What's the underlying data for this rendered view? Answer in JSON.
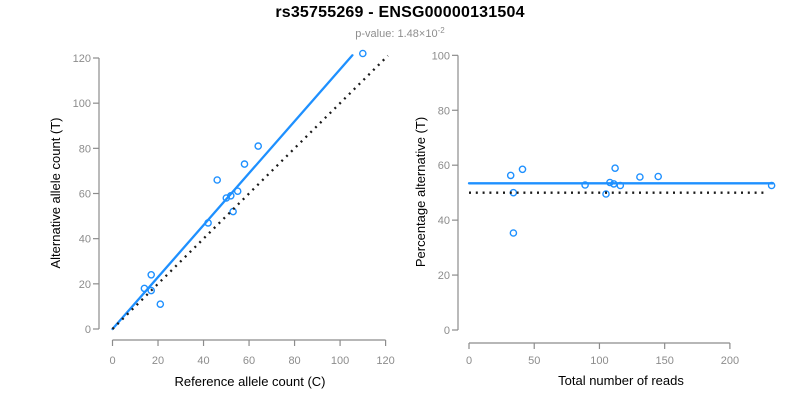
{
  "header": {
    "title": "rs35755269 - ENSG00000131504",
    "p_label": "p-value: ",
    "p_mantissa": "1.48",
    "p_times": "×10",
    "p_exponent": "-2"
  },
  "colors": {
    "accent": "#1E90FF",
    "black_line": "#1a1a1a",
    "axis": "#8c8c8c",
    "tick_label": "#8c8c8c",
    "axis_title": "#000000",
    "background": "#ffffff"
  },
  "chart_data": [
    {
      "name": "allele-counts-scatter",
      "type": "scatter",
      "title": "",
      "xlabel": "Reference allele count (C)",
      "ylabel": "Alternative allele count (T)",
      "xlim": [
        0,
        120
      ],
      "ylim": [
        0,
        122
      ],
      "xticks": [
        0,
        20,
        40,
        60,
        80,
        100,
        120
      ],
      "yticks": [
        0,
        20,
        40,
        60,
        80,
        100,
        120
      ],
      "grid": false,
      "legend": null,
      "points": [
        [
          14,
          18
        ],
        [
          17,
          24
        ],
        [
          17,
          17
        ],
        [
          21,
          11
        ],
        [
          42,
          47
        ],
        [
          50,
          58
        ],
        [
          52,
          59
        ],
        [
          53,
          52
        ],
        [
          55,
          61
        ],
        [
          46,
          66
        ],
        [
          58,
          73
        ],
        [
          64,
          81
        ],
        [
          110,
          122
        ]
      ],
      "lines": [
        {
          "name": "regression-line",
          "x": [
            0,
            105.4
          ],
          "y": [
            0,
            121.2
          ],
          "color": "accent",
          "dash": false
        },
        {
          "name": "identity-line",
          "x": [
            0,
            121
          ],
          "y": [
            0,
            121
          ],
          "color": "black_line",
          "dash": true
        }
      ]
    },
    {
      "name": "percentage-vs-coverage-scatter",
      "type": "scatter",
      "title": "",
      "xlabel": "Total number of reads",
      "ylabel": "Percentage alternative (T)",
      "xlim": [
        0,
        232
      ],
      "ylim": [
        0,
        100
      ],
      "xticks": [
        0,
        50,
        100,
        150,
        200
      ],
      "yticks": [
        0,
        20,
        40,
        60,
        80,
        100
      ],
      "grid": false,
      "legend": null,
      "points": [
        [
          32,
          56.3
        ],
        [
          41,
          58.5
        ],
        [
          34,
          50.0
        ],
        [
          34,
          35.3
        ],
        [
          89,
          52.8
        ],
        [
          108,
          53.7
        ],
        [
          111,
          53.2
        ],
        [
          105,
          49.5
        ],
        [
          116,
          52.6
        ],
        [
          112,
          58.9
        ],
        [
          131,
          55.7
        ],
        [
          145,
          55.9
        ],
        [
          232,
          52.6
        ]
      ],
      "lines": [
        {
          "name": "mean-percentage-line",
          "x": [
            0,
            233
          ],
          "y": [
            53.4,
            53.4
          ],
          "color": "accent",
          "dash": false
        },
        {
          "name": "fifty-percent-line",
          "x": [
            0,
            228
          ],
          "y": [
            50,
            50
          ],
          "color": "black_line",
          "dash": true
        }
      ]
    }
  ]
}
